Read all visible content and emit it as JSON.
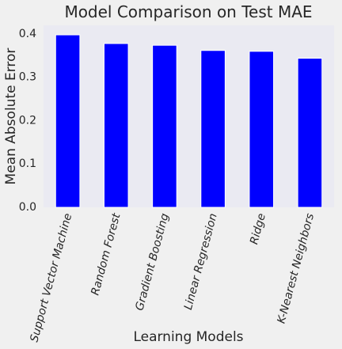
{
  "chart_data": {
    "type": "bar",
    "title": "Model Comparison on Test MAE",
    "xlabel": "Learning Models",
    "ylabel": "Mean Absolute Error",
    "categories": [
      "Support Vector Machine",
      "Random Forest",
      "Gradient Boosting",
      "Linear Regression",
      "Ridge",
      "K-Nearest Neighbors"
    ],
    "values": [
      0.398,
      0.378,
      0.374,
      0.362,
      0.36,
      0.344
    ],
    "ylim": [
      0,
      0.42
    ],
    "yticks": [
      "0.0",
      "0.1",
      "0.2",
      "0.3",
      "0.4"
    ],
    "grid": false,
    "bar_color": "#0000ff",
    "plot_background": "#eaeaf2",
    "page_background": "#f0f0f0"
  }
}
